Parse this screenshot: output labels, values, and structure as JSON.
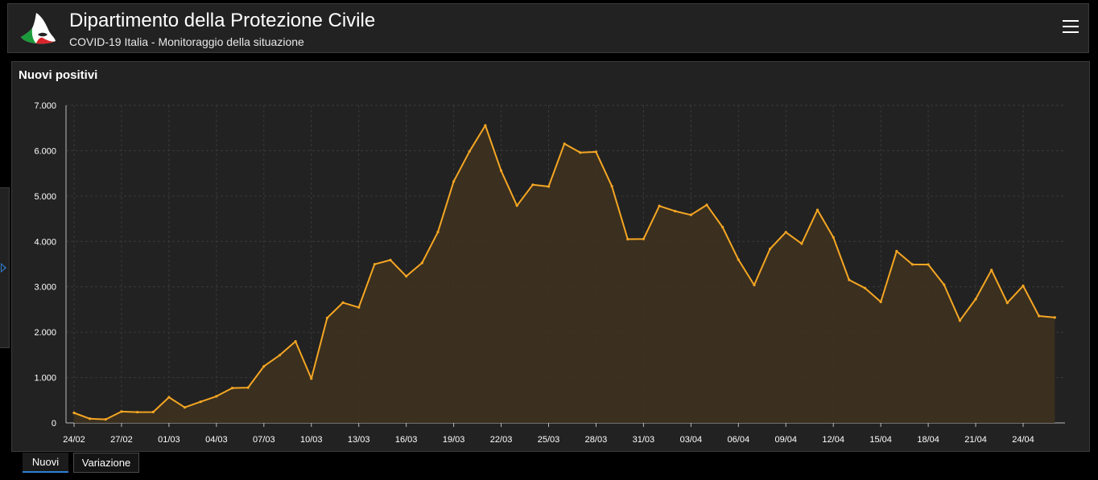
{
  "header": {
    "title": "Dipartimento della Protezione Civile",
    "subtitle": "COVID-19 Italia - Monitoraggio della situazione",
    "logo_icon": "civil-protection-logo-icon",
    "menu_icon": "hamburger-menu-icon"
  },
  "panel": {
    "title": "Nuovi positivi"
  },
  "tabs": [
    {
      "label": "Nuovi",
      "active": true
    },
    {
      "label": "Variazione",
      "active": false
    }
  ],
  "colors": {
    "line": "#f5a623",
    "fill": "#3d3120",
    "background": "#222222",
    "grid": "#3a3a3a",
    "accent": "#2d7fd6"
  },
  "chart_data": {
    "type": "area",
    "title": "Nuovi positivi",
    "xlabel": "",
    "ylabel": "",
    "ylim": [
      0,
      7000
    ],
    "yticks": [
      "0",
      "1.000",
      "2.000",
      "3.000",
      "4.000",
      "5.000",
      "6.000",
      "7.000"
    ],
    "xtick_labels": [
      "24/02",
      "27/02",
      "01/03",
      "04/03",
      "07/03",
      "10/03",
      "13/03",
      "16/03",
      "19/03",
      "22/03",
      "25/03",
      "28/03",
      "31/03",
      "03/04",
      "06/04",
      "09/04",
      "12/04",
      "15/04",
      "18/04",
      "21/04",
      "24/04"
    ],
    "grid": true,
    "x": [
      "24/02",
      "25/02",
      "26/02",
      "27/02",
      "28/02",
      "29/02",
      "01/03",
      "02/03",
      "03/03",
      "04/03",
      "05/03",
      "06/03",
      "07/03",
      "08/03",
      "09/03",
      "10/03",
      "11/03",
      "12/03",
      "13/03",
      "14/03",
      "15/03",
      "16/03",
      "17/03",
      "18/03",
      "19/03",
      "20/03",
      "21/03",
      "22/03",
      "23/03",
      "24/03",
      "25/03",
      "26/03",
      "27/03",
      "28/03",
      "29/03",
      "30/03",
      "31/03",
      "01/04",
      "02/04",
      "03/04",
      "04/04",
      "05/04",
      "06/04",
      "07/04",
      "08/04",
      "09/04",
      "10/04",
      "11/04",
      "12/04",
      "13/04",
      "14/04",
      "15/04",
      "16/04",
      "17/04",
      "18/04",
      "19/04",
      "20/04",
      "21/04",
      "22/04",
      "23/04",
      "24/04",
      "25/04",
      "26/04"
    ],
    "series": [
      {
        "values": [
          221,
          93,
          78,
          250,
          238,
          240,
          566,
          342,
          466,
          587,
          769,
          778,
          1247,
          1492,
          1797,
          977,
          2313,
          2651,
          2547,
          3497,
          3590,
          3233,
          3526,
          4207,
          5322,
          5986,
          6557,
          5560,
          4789,
          5249,
          5210,
          6153,
          5959,
          5974,
          5217,
          4050,
          4053,
          4782,
          4668,
          4585,
          4805,
          4316,
          3599,
          3039,
          3836,
          4204,
          3951,
          4694,
          4092,
          3153,
          2972,
          2667,
          3786,
          3493,
          3491,
          3047,
          2256,
          2729,
          3370,
          2646,
          3021,
          2357,
          2324
        ]
      }
    ]
  }
}
